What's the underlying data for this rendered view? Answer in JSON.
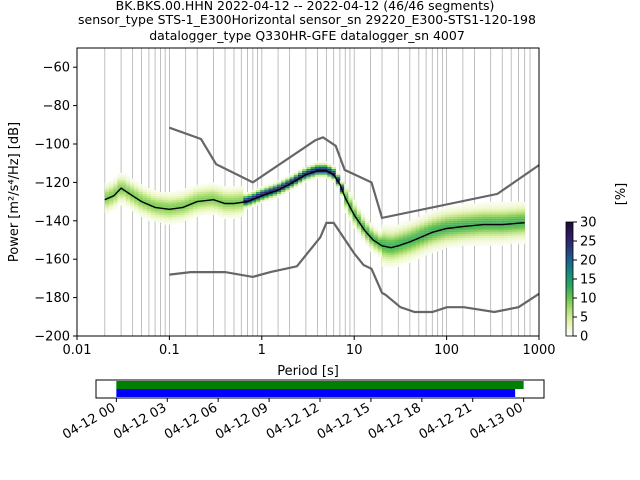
{
  "title": {
    "line1": "BK.BKS.00.HHN   2022-04-12 -- 2022-04-12  (46/46 segments)",
    "line2": "sensor_type STS-1_E300Horizontal sensor_sn 29220_E300-STS1-120-198",
    "line3": "datalogger_type Q330HR-GFE datalogger_sn 4007"
  },
  "chart_data": [
    {
      "type": "heatmap",
      "xlabel": "Period [s]",
      "ylabel": "Power [m²/s⁴/Hz] [dB]",
      "x_scale": "log",
      "xlim": [
        0.01,
        1000
      ],
      "ylim": [
        -200,
        -50
      ],
      "x_tick_values": [
        0.01,
        0.1,
        1,
        10,
        100,
        1000
      ],
      "x_tick_labels": [
        "0.01",
        "0.1",
        "1",
        "10",
        "100",
        "1000"
      ],
      "y_tick_values": [
        -200,
        -180,
        -160,
        -140,
        -120,
        -100,
        -80,
        -60
      ],
      "y_tick_labels": [
        "−200",
        "−180",
        "−160",
        "−140",
        "−120",
        "−100",
        "−80",
        "−60"
      ],
      "grid": "vertical lines at period bin centers",
      "colorbar": {
        "label": "[%]",
        "range": [
          0,
          30
        ],
        "ticks": [
          0,
          5,
          10,
          15,
          20,
          25,
          30
        ],
        "colormap": [
          "#ffffff",
          "#e6f5b8",
          "#b5e07a",
          "#6cc550",
          "#2aa662",
          "#178a7c",
          "#1f5f8f",
          "#2b357a",
          "#2d1a5e",
          "#1a0d33"
        ]
      },
      "noise_models": {
        "high": [
          [
            0.1,
            -91.5
          ],
          [
            0.22,
            -97.4
          ],
          [
            0.32,
            -110.5
          ],
          [
            0.8,
            -120
          ],
          [
            3.8,
            -98
          ],
          [
            4.6,
            -96.5
          ],
          [
            6.3,
            -101
          ],
          [
            7.9,
            -113.5
          ],
          [
            15.4,
            -120
          ],
          [
            20,
            -138.5
          ],
          [
            354.8,
            -126
          ],
          [
            1000,
            -111
          ]
        ],
        "low": [
          [
            0.1,
            -168
          ],
          [
            0.17,
            -166.7
          ],
          [
            0.4,
            -166.7
          ],
          [
            0.8,
            -169.2
          ],
          [
            1.24,
            -166.7
          ],
          [
            2.4,
            -163.7
          ],
          [
            4.3,
            -148.6
          ],
          [
            5.0,
            -141.1
          ],
          [
            6.0,
            -141.1
          ],
          [
            10.0,
            -157
          ],
          [
            12.6,
            -163
          ],
          [
            15.4,
            -165
          ],
          [
            20.0,
            -177.5
          ],
          [
            21.9,
            -178.6
          ],
          [
            31.6,
            -185
          ],
          [
            45.0,
            -187.5
          ],
          [
            70.0,
            -187.5
          ],
          [
            101.0,
            -185
          ],
          [
            154.0,
            -185
          ],
          [
            328.0,
            -187.5
          ],
          [
            600.0,
            -185
          ],
          [
            1000.0,
            -178
          ]
        ]
      },
      "mode_curve": [
        [
          0.02,
          -129
        ],
        [
          0.025,
          -127
        ],
        [
          0.03,
          -123
        ],
        [
          0.04,
          -127
        ],
        [
          0.05,
          -130
        ],
        [
          0.07,
          -133
        ],
        [
          0.1,
          -134
        ],
        [
          0.14,
          -133
        ],
        [
          0.2,
          -130
        ],
        [
          0.3,
          -129
        ],
        [
          0.4,
          -131
        ],
        [
          0.5,
          -131
        ],
        [
          0.7,
          -130
        ],
        [
          1.0,
          -127
        ],
        [
          1.5,
          -124
        ],
        [
          2.0,
          -121
        ],
        [
          3.0,
          -116
        ],
        [
          4.0,
          -114
        ],
        [
          5.0,
          -114
        ],
        [
          6.0,
          -116
        ],
        [
          7.0,
          -121
        ],
        [
          8.0,
          -128
        ],
        [
          10.0,
          -137
        ],
        [
          13.0,
          -145
        ],
        [
          16.0,
          -150
        ],
        [
          20.0,
          -153
        ],
        [
          25.0,
          -154
        ],
        [
          30.0,
          -153
        ],
        [
          40.0,
          -151
        ],
        [
          50.0,
          -149
        ],
        [
          70.0,
          -146
        ],
        [
          100.0,
          -144
        ],
        [
          150.0,
          -143
        ],
        [
          250.0,
          -142
        ],
        [
          400.0,
          -142
        ],
        [
          700.0,
          -141
        ]
      ]
    },
    {
      "type": "bar",
      "description": "data availability",
      "x_tick_labels": [
        "04-12 00",
        "04-12 03",
        "04-12 06",
        "04-12 09",
        "04-12 12",
        "04-12 15",
        "04-12 18",
        "04-12 21",
        "04-13 00"
      ],
      "x_tick_hours": [
        0,
        3,
        6,
        9,
        12,
        15,
        18,
        21,
        24
      ],
      "xlim_hours": [
        -1.2,
        25.2
      ],
      "series": [
        {
          "color": "#008000",
          "start_hour": 0,
          "end_hour": 24.0
        },
        {
          "color": "#0000ff",
          "start_hour": 0,
          "end_hour": 23.5
        }
      ]
    }
  ],
  "colors": {
    "noise_model": "#666666",
    "mode": "#000000",
    "grid": "#b0b0b0"
  }
}
